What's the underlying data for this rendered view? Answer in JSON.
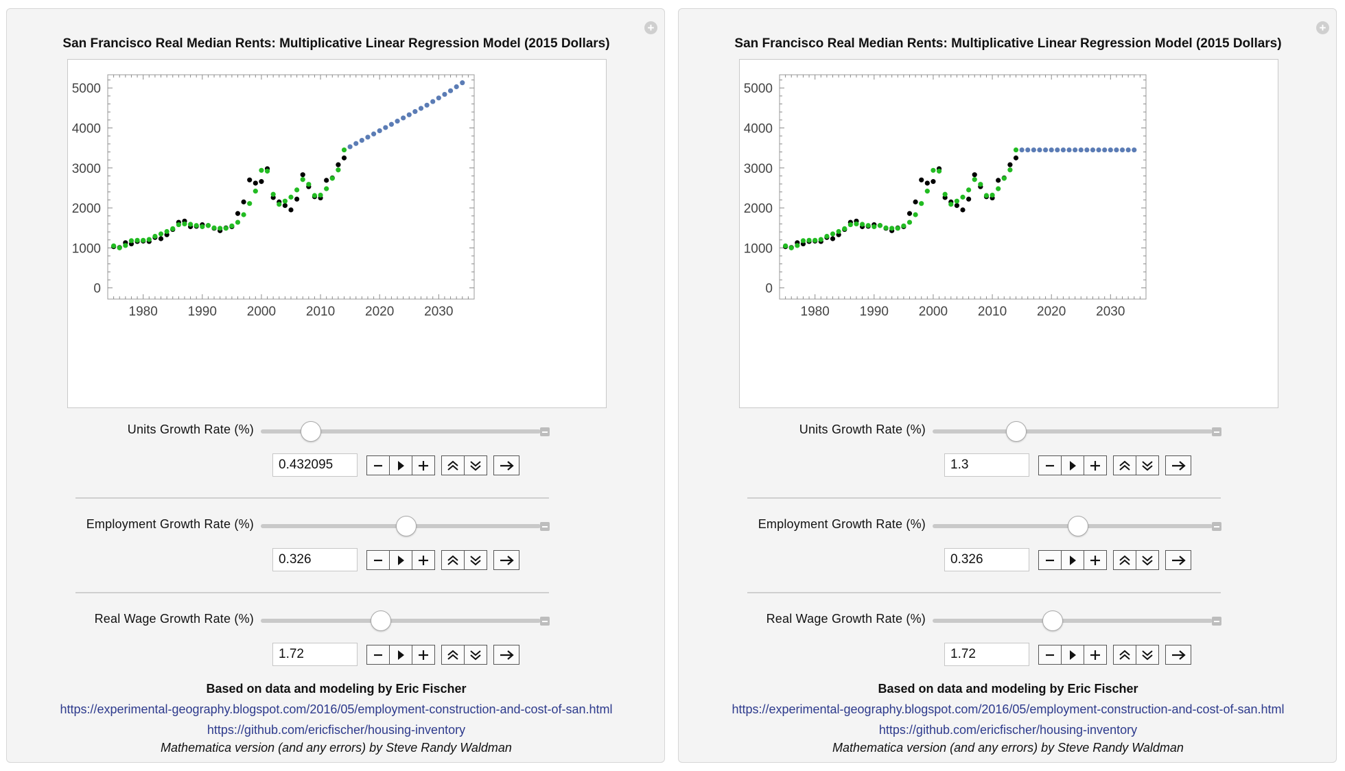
{
  "panels": [
    {
      "chart_data": {
        "type": "scatter",
        "title": "San Francisco Real Median Rents: Multiplicative Linear Regression Model (2015 Dollars)",
        "xlabel": "",
        "ylabel": "",
        "xlim": [
          1974,
          2036
        ],
        "ylim": [
          -280,
          5330
        ],
        "xticks": [
          1980,
          1990,
          2000,
          2010,
          2020,
          2030
        ],
        "yticks": [
          0,
          1000,
          2000,
          3000,
          4000,
          5000
        ],
        "grid": false,
        "series": [
          {
            "color": "#000000",
            "x": [
              1975,
              1976,
              1977,
              1978,
              1979,
              1980,
              1981,
              1982,
              1983,
              1984,
              1985,
              1986,
              1987,
              1988,
              1989,
              1990,
              1991,
              1992,
              1993,
              1994,
              1995,
              1996,
              1997,
              1998,
              1999,
              2000,
              2001,
              2002,
              2003,
              2004,
              2005,
              2006,
              2007,
              2008,
              2009,
              2010,
              2011,
              2012,
              2013,
              2014
            ],
            "y": [
              1030,
              1010,
              1130,
              1100,
              1160,
              1170,
              1160,
              1260,
              1230,
              1330,
              1460,
              1640,
              1670,
              1530,
              1540,
              1580,
              1560,
              1490,
              1430,
              1500,
              1530,
              1860,
              2150,
              2700,
              2620,
              2660,
              2980,
              2260,
              2150,
              2060,
              1950,
              2220,
              2830,
              2530,
              2280,
              2250,
              2690,
              2750,
              3080,
              3250
            ]
          },
          {
            "color": "#22bb22",
            "x": [
              1975,
              1976,
              1977,
              1978,
              1979,
              1980,
              1981,
              1982,
              1983,
              1984,
              1985,
              1986,
              1987,
              1988,
              1989,
              1990,
              1991,
              1992,
              1993,
              1994,
              1995,
              1996,
              1997,
              1998,
              1999,
              2000,
              2001,
              2002,
              2003,
              2004,
              2005,
              2006,
              2007,
              2008,
              2009,
              2010,
              2011,
              2012,
              2013,
              2014
            ],
            "y": [
              1050,
              1000,
              1060,
              1180,
              1190,
              1190,
              1210,
              1290,
              1350,
              1410,
              1480,
              1580,
              1600,
              1590,
              1560,
              1530,
              1560,
              1500,
              1490,
              1490,
              1550,
              1640,
              1830,
              2110,
              2420,
              2940,
              2920,
              2340,
              2090,
              2170,
              2270,
              2450,
              2710,
              2590,
              2310,
              2320,
              2480,
              2740,
              2950,
              3450
            ]
          },
          {
            "color": "#5b7cb5",
            "x": [
              2015,
              2016,
              2017,
              2018,
              2019,
              2020,
              2021,
              2022,
              2023,
              2024,
              2025,
              2026,
              2027,
              2028,
              2029,
              2030,
              2031,
              2032,
              2033,
              2034
            ],
            "y": [
              3530,
              3610,
              3690,
              3770,
              3850,
              3930,
              4010,
              4090,
              4170,
              4250,
              4330,
              4410,
              4490,
              4570,
              4660,
              4750,
              4840,
              4930,
              5030,
              5130
            ]
          }
        ]
      },
      "controls": [
        {
          "label": "Units Growth Rate (%)",
          "value": "0.432095",
          "position": 0.18
        },
        {
          "label": "Employment Growth Rate (%)",
          "value": "0.326",
          "position": 0.52
        },
        {
          "label": "Real Wage Growth Rate (%)",
          "value": "1.72",
          "position": 0.43
        }
      ],
      "credits": {
        "line1": "Based on data and modeling by Eric Fischer",
        "link1": "https://experimental-geography.blogspot.com/2016/05/employment-construction-and-cost-of-san.html",
        "link2": "https://github.com/ericfischer/housing-inventory",
        "line4": "Mathematica version (and any errors) by Steve Randy Waldman"
      }
    },
    {
      "chart_data": {
        "type": "scatter",
        "title": "San Francisco Real Median Rents: Multiplicative Linear Regression Model (2015 Dollars)",
        "xlabel": "",
        "ylabel": "",
        "xlim": [
          1974,
          2036
        ],
        "ylim": [
          -280,
          5330
        ],
        "xticks": [
          1980,
          1990,
          2000,
          2010,
          2020,
          2030
        ],
        "yticks": [
          0,
          1000,
          2000,
          3000,
          4000,
          5000
        ],
        "grid": false,
        "series": [
          {
            "color": "#000000",
            "x": [
              1975,
              1976,
              1977,
              1978,
              1979,
              1980,
              1981,
              1982,
              1983,
              1984,
              1985,
              1986,
              1987,
              1988,
              1989,
              1990,
              1991,
              1992,
              1993,
              1994,
              1995,
              1996,
              1997,
              1998,
              1999,
              2000,
              2001,
              2002,
              2003,
              2004,
              2005,
              2006,
              2007,
              2008,
              2009,
              2010,
              2011,
              2012,
              2013,
              2014
            ],
            "y": [
              1030,
              1010,
              1130,
              1100,
              1160,
              1170,
              1160,
              1260,
              1230,
              1330,
              1460,
              1640,
              1670,
              1530,
              1540,
              1580,
              1560,
              1490,
              1430,
              1500,
              1530,
              1860,
              2150,
              2700,
              2620,
              2660,
              2980,
              2260,
              2150,
              2060,
              1950,
              2220,
              2830,
              2530,
              2280,
              2250,
              2690,
              2750,
              3080,
              3250
            ]
          },
          {
            "color": "#22bb22",
            "x": [
              1975,
              1976,
              1977,
              1978,
              1979,
              1980,
              1981,
              1982,
              1983,
              1984,
              1985,
              1986,
              1987,
              1988,
              1989,
              1990,
              1991,
              1992,
              1993,
              1994,
              1995,
              1996,
              1997,
              1998,
              1999,
              2000,
              2001,
              2002,
              2003,
              2004,
              2005,
              2006,
              2007,
              2008,
              2009,
              2010,
              2011,
              2012,
              2013,
              2014
            ],
            "y": [
              1050,
              1000,
              1060,
              1180,
              1190,
              1190,
              1210,
              1290,
              1350,
              1410,
              1480,
              1580,
              1600,
              1590,
              1560,
              1530,
              1560,
              1500,
              1490,
              1490,
              1550,
              1640,
              1830,
              2110,
              2420,
              2940,
              2920,
              2340,
              2090,
              2170,
              2270,
              2450,
              2710,
              2590,
              2310,
              2320,
              2480,
              2740,
              2950,
              3450
            ]
          },
          {
            "color": "#5b7cb5",
            "x": [
              2015,
              2016,
              2017,
              2018,
              2019,
              2020,
              2021,
              2022,
              2023,
              2024,
              2025,
              2026,
              2027,
              2028,
              2029,
              2030,
              2031,
              2032,
              2033,
              2034
            ],
            "y": [
              3450,
              3450,
              3450,
              3450,
              3450,
              3450,
              3450,
              3450,
              3450,
              3450,
              3450,
              3450,
              3450,
              3450,
              3450,
              3450,
              3450,
              3450,
              3450,
              3450
            ]
          }
        ]
      },
      "controls": [
        {
          "label": "Units Growth Rate (%)",
          "value": "1.3",
          "position": 0.3
        },
        {
          "label": "Employment Growth Rate (%)",
          "value": "0.326",
          "position": 0.52
        },
        {
          "label": "Real Wage Growth Rate (%)",
          "value": "1.72",
          "position": 0.43
        }
      ],
      "credits": {
        "line1": "Based on data and modeling by Eric Fischer",
        "link1": "https://experimental-geography.blogspot.com/2016/05/employment-construction-and-cost-of-san.html",
        "link2": "https://github.com/ericfischer/housing-inventory",
        "line4": "Mathematica version (and any errors) by Steve Randy Waldman"
      }
    }
  ]
}
